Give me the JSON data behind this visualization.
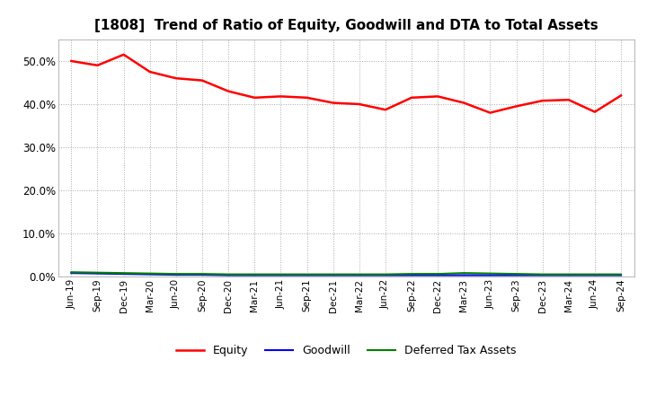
{
  "title": "[1808]  Trend of Ratio of Equity, Goodwill and DTA to Total Assets",
  "x_labels": [
    "Jun-19",
    "Sep-19",
    "Dec-19",
    "Mar-20",
    "Jun-20",
    "Sep-20",
    "Dec-20",
    "Mar-21",
    "Jun-21",
    "Sep-21",
    "Dec-21",
    "Mar-22",
    "Jun-22",
    "Sep-22",
    "Dec-22",
    "Mar-23",
    "Jun-23",
    "Sep-23",
    "Dec-23",
    "Mar-24",
    "Jun-24",
    "Sep-24"
  ],
  "equity": [
    50.0,
    49.0,
    51.5,
    47.5,
    46.0,
    45.5,
    43.0,
    41.5,
    41.8,
    41.5,
    40.3,
    40.0,
    38.7,
    41.5,
    41.8,
    40.3,
    38.0,
    39.5,
    40.8,
    41.0,
    38.2,
    42.0
  ],
  "goodwill": [
    0.8,
    0.7,
    0.6,
    0.5,
    0.4,
    0.4,
    0.3,
    0.3,
    0.3,
    0.3,
    0.3,
    0.3,
    0.3,
    0.3,
    0.3,
    0.3,
    0.3,
    0.3,
    0.3,
    0.3,
    0.3,
    0.3
  ],
  "dta": [
    1.0,
    0.9,
    0.8,
    0.7,
    0.6,
    0.6,
    0.5,
    0.5,
    0.5,
    0.5,
    0.5,
    0.5,
    0.5,
    0.6,
    0.6,
    0.8,
    0.7,
    0.6,
    0.5,
    0.5,
    0.5,
    0.5
  ],
  "equity_color": "#FF0000",
  "goodwill_color": "#0000FF",
  "dta_color": "#008000",
  "background_color": "#FFFFFF",
  "plot_bg_color": "#FFFFFF",
  "grid_color": "#AAAAAA",
  "ylim": [
    0,
    55
  ],
  "yticks": [
    0,
    10,
    20,
    30,
    40,
    50
  ],
  "title_fontsize": 11,
  "legend_labels": [
    "Equity",
    "Goodwill",
    "Deferred Tax Assets"
  ]
}
